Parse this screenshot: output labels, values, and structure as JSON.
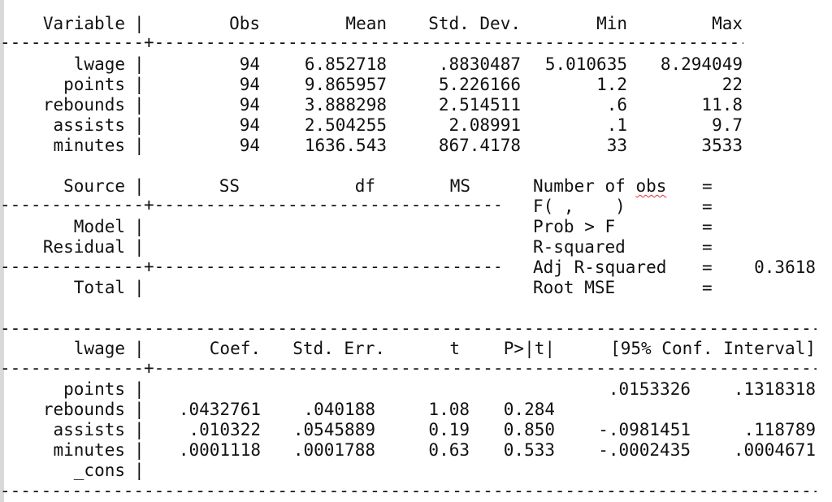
{
  "summary": {
    "headers": [
      "Variable",
      "Obs",
      "Mean",
      "Std. Dev.",
      "Min",
      "Max"
    ],
    "rows": [
      [
        "lwage",
        "94",
        "6.852718",
        ".8830487",
        "5.010635",
        "8.294049"
      ],
      [
        "points",
        "94",
        "9.865957",
        "5.226166",
        "1.2",
        "22"
      ],
      [
        "rebounds",
        "94",
        "3.888298",
        "2.514511",
        ".6",
        "11.8"
      ],
      [
        "assists",
        "94",
        "2.504255",
        "2.08991",
        ".1",
        "9.7"
      ],
      [
        "minutes",
        "94",
        "1636.543",
        "867.4178",
        "33",
        "3533"
      ]
    ]
  },
  "anova": {
    "headers": [
      "Source",
      "SS",
      "df",
      "MS"
    ],
    "rows": [
      "Model",
      "Residual"
    ],
    "total": "Total",
    "stats": [
      {
        "label": "Number of obs",
        "eq": "=",
        "value": ""
      },
      {
        "label": "F( ,    )",
        "eq": "=",
        "value": ""
      },
      {
        "label": "Prob > F",
        "eq": "=",
        "value": ""
      },
      {
        "label": "R-squared",
        "eq": "=",
        "value": ""
      },
      {
        "label": "Adj R-squared",
        "eq": "=",
        "value": "0.3618"
      },
      {
        "label": "Root MSE",
        "eq": "=",
        "value": ""
      }
    ]
  },
  "regression": {
    "dependent": "lwage",
    "headers": [
      "Coef.",
      "Std. Err.",
      "t",
      "P>|t|",
      "[95% Conf. Interval]"
    ],
    "rows": [
      [
        "points",
        "",
        "",
        "",
        "",
        ".0153326",
        ".1318318"
      ],
      [
        "rebounds",
        ".0432761",
        ".040188",
        "1.08",
        "0.284",
        "",
        ""
      ],
      [
        "assists",
        ".010322",
        ".0545889",
        "0.19",
        "0.850",
        "-.0981451",
        ".118789"
      ],
      [
        "minutes",
        ".0001118",
        ".0001788",
        "0.63",
        "0.533",
        "-.0002435",
        ".0004671"
      ],
      [
        "_cons",
        "",
        "",
        "",
        "",
        "",
        ""
      ]
    ]
  },
  "colors": {
    "text": "#111111",
    "background": "#ffffff",
    "spellcheck": "#dd3333"
  }
}
